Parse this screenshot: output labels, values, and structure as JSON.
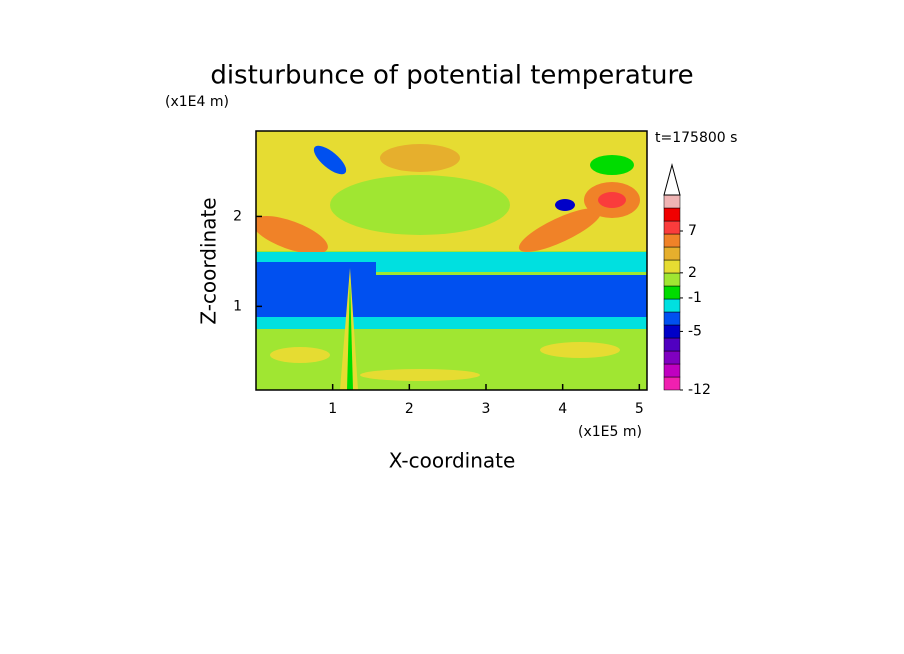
{
  "chart_data": {
    "type": "contour",
    "title": "disturbunce of potential temperature",
    "y_unit": "(x1E4 m)",
    "x_unit": "(x1E5 m)",
    "xlabel": "X-coordinate",
    "ylabel": "Z-coordinate",
    "annotation": "t=175800 s",
    "xlim": [
      0,
      5.1
    ],
    "xticks": [
      1,
      2,
      3,
      4,
      5
    ],
    "ylim": [
      0.07,
      2.95
    ],
    "yticks": [
      1,
      2
    ],
    "colorbar": {
      "clim": [
        -12,
        11.3
      ],
      "ticks": [
        -12,
        -5,
        -1,
        2,
        7
      ],
      "colors": [
        "#f020b0",
        "#c000c0",
        "#8000c0",
        "#5000c0",
        "#0000c8",
        "#0050f0",
        "#00e0e0",
        "#00dc00",
        "#a0e632",
        "#e6dc32",
        "#e6af2d",
        "#f08228",
        "#fa3c3c",
        "#f00000",
        "#f0b4b4"
      ]
    }
  }
}
